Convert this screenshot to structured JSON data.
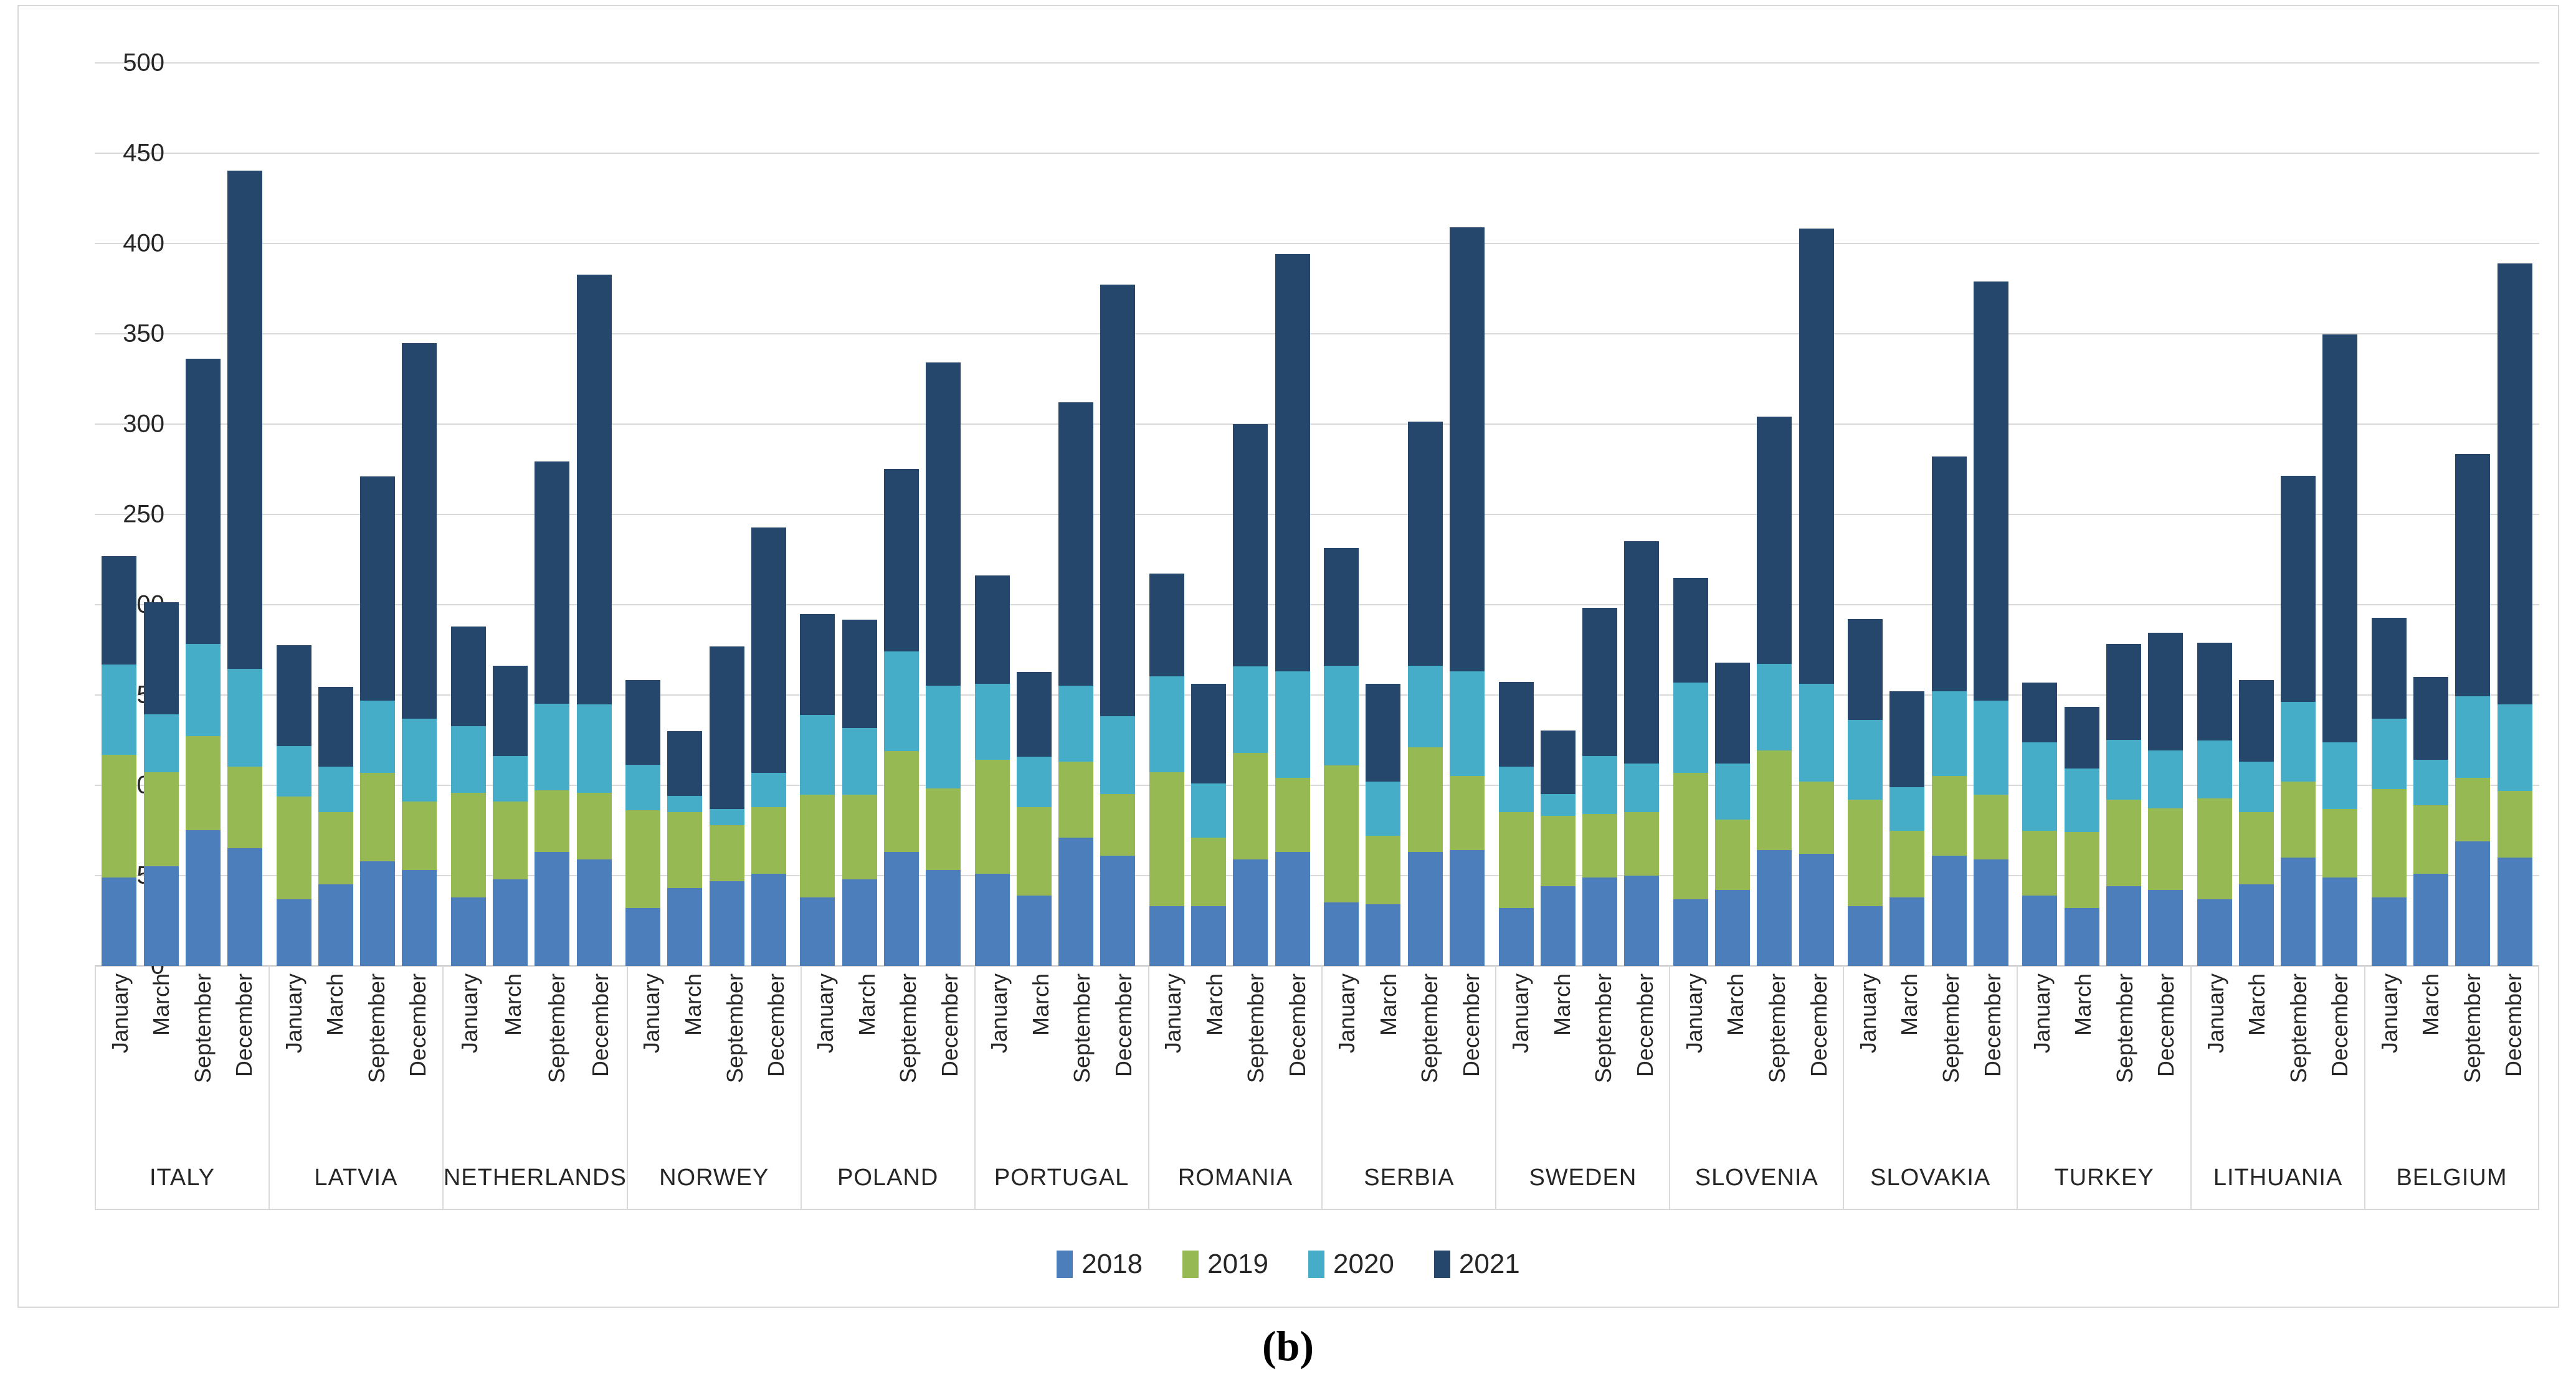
{
  "figure": {
    "caption": "(b)"
  },
  "chart_data": {
    "type": "bar",
    "stacked": true,
    "title": "",
    "xlabel": "",
    "ylabel": "",
    "ylim": [
      0,
      500
    ],
    "ytick_step": 50,
    "yticks": [
      0,
      50,
      100,
      150,
      200,
      250,
      300,
      350,
      400,
      450,
      500
    ],
    "grid": "horizontal",
    "grid_color": "#d9d9d9",
    "legend_position": "bottom-center",
    "months": [
      "January",
      "March",
      "September",
      "December"
    ],
    "countries": [
      "ITALY",
      "LATVIA",
      "NETHERLANDS",
      "NORWEY",
      "POLAND",
      "PORTUGAL",
      "ROMANIA",
      "SERBIA",
      "SWEDEN",
      "SLOVENIA",
      "SLOVAKIA",
      "TURKEY",
      "LITHUANIA",
      "BELGIUM"
    ],
    "series": [
      {
        "name": "2018",
        "color": "#4C7EBC",
        "values": [
          [
            49,
            55,
            75,
            65
          ],
          [
            37,
            45,
            58,
            53
          ],
          [
            38,
            48,
            63,
            59
          ],
          [
            32,
            43,
            47,
            51
          ],
          [
            38,
            48,
            63,
            53
          ],
          [
            51,
            39,
            71,
            61
          ],
          [
            33,
            33,
            59,
            63
          ],
          [
            35,
            34,
            63,
            64
          ],
          [
            32,
            44,
            49,
            50
          ],
          [
            37,
            42,
            64,
            62
          ],
          [
            33,
            38,
            61,
            59
          ],
          [
            39,
            32,
            44,
            42
          ],
          [
            37,
            45,
            60,
            49
          ],
          [
            38,
            51,
            69,
            60
          ]
        ]
      },
      {
        "name": "2019",
        "color": "#96B953",
        "values": [
          [
            68,
            52,
            52,
            45
          ],
          [
            57,
            40,
            49,
            38
          ],
          [
            58,
            43,
            34,
            37
          ],
          [
            54,
            42,
            31,
            37
          ],
          [
            57,
            47,
            56,
            45
          ],
          [
            63,
            49,
            42,
            34
          ],
          [
            74,
            38,
            59,
            41
          ],
          [
            76,
            38,
            58,
            41
          ],
          [
            53,
            39,
            35,
            35
          ],
          [
            70,
            39,
            55,
            40
          ],
          [
            59,
            37,
            44,
            36
          ],
          [
            36,
            42,
            48,
            45
          ],
          [
            56,
            40,
            42,
            38
          ],
          [
            60,
            38,
            35,
            37
          ]
        ]
      },
      {
        "name": "2020",
        "color": "#45ADC8",
        "values": [
          [
            50,
            32,
            51,
            54
          ],
          [
            28,
            25,
            40,
            46
          ],
          [
            37,
            25,
            48,
            49
          ],
          [
            25,
            9,
            9,
            19
          ],
          [
            44,
            37,
            55,
            57
          ],
          [
            42,
            28,
            42,
            43
          ],
          [
            53,
            30,
            48,
            59
          ],
          [
            55,
            30,
            45,
            58
          ],
          [
            25,
            12,
            32,
            27
          ],
          [
            50,
            31,
            48,
            54
          ],
          [
            44,
            24,
            47,
            52
          ],
          [
            49,
            35,
            33,
            32
          ],
          [
            32,
            28,
            44,
            37
          ],
          [
            39,
            25,
            45,
            48
          ]
        ]
      },
      {
        "name": "2021",
        "color": "#24476B",
        "values": [
          [
            60,
            62,
            158,
            276
          ],
          [
            56,
            44,
            124,
            208
          ],
          [
            55,
            50,
            134,
            238
          ],
          [
            47,
            36,
            90,
            136
          ],
          [
            56,
            60,
            101,
            179
          ],
          [
            60,
            47,
            157,
            239
          ],
          [
            57,
            55,
            134,
            231
          ],
          [
            65,
            54,
            135,
            246
          ],
          [
            47,
            35,
            82,
            123
          ],
          [
            58,
            56,
            137,
            252
          ],
          [
            56,
            53,
            130,
            232
          ],
          [
            33,
            34,
            53,
            65
          ],
          [
            54,
            45,
            125,
            226
          ],
          [
            56,
            46,
            134,
            244
          ]
        ]
      }
    ]
  }
}
